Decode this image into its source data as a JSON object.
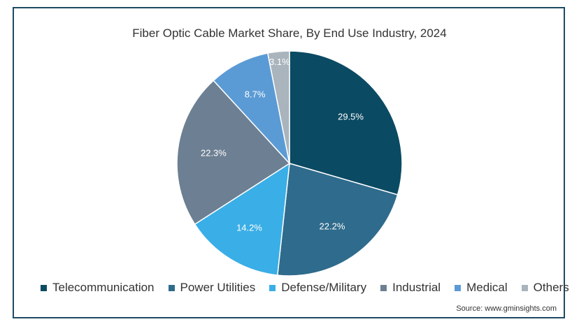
{
  "chart_data": {
    "type": "pie",
    "title": "Fiber Optic Cable Market Share, By End Use Industry, 2024",
    "categories": [
      "Telecommunication",
      "Power Utilities",
      "Defense/Military",
      "Industrial",
      "Medical",
      "Others"
    ],
    "values": [
      29.5,
      22.2,
      14.2,
      22.3,
      8.7,
      3.1
    ],
    "value_labels": [
      "29.5%",
      "22.2%",
      "14.2%",
      "22.3%",
      "8.7%",
      "3.1%"
    ],
    "colors": [
      "#0b4a63",
      "#2f6b8c",
      "#3aaee6",
      "#6d7f92",
      "#5b9bd5",
      "#a9b4bd"
    ],
    "label_colors": [
      "#ffffff",
      "#ffffff",
      "#ffffff",
      "#ffffff",
      "#ffffff",
      "#ffffff"
    ],
    "legend_position": "bottom",
    "start_angle_deg": 0,
    "direction": "clockwise"
  },
  "source": "Source: www.gminsights.com"
}
